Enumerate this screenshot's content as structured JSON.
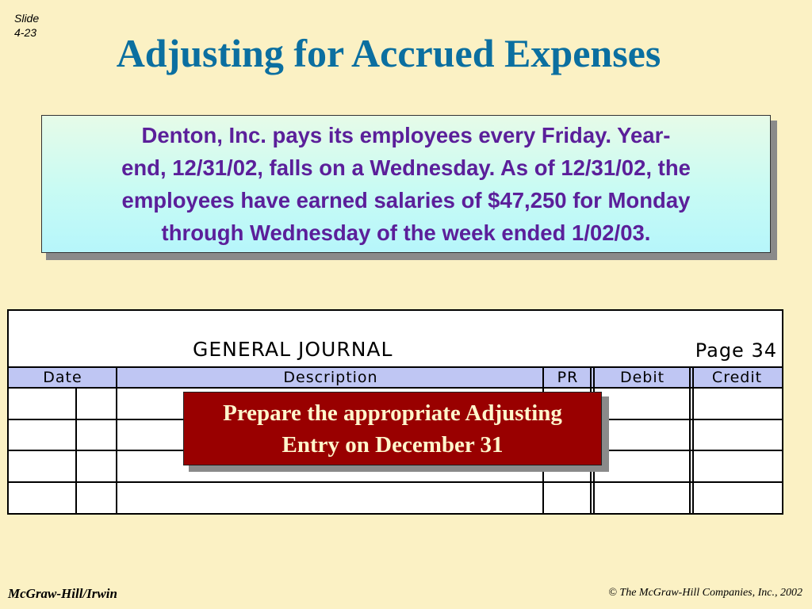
{
  "slide": {
    "label": "Slide",
    "number": "4-23"
  },
  "title": "Adjusting for Accrued Expenses",
  "info": {
    "line1": "Denton, Inc. pays its employees every Friday.  Year-",
    "line2": "end, 12/31/02, falls on a Wednesday. As of 12/31/02, the",
    "line3": "employees have earned salaries of $47,250 for Monday",
    "line4": "through Wednesday of the week ended 1/02/03."
  },
  "journal": {
    "title": "GENERAL JOURNAL",
    "page": "Page 34",
    "columns": {
      "date": "Date",
      "description": "Description",
      "pr": "PR",
      "debit": "Debit",
      "credit": "Credit"
    }
  },
  "prompt": {
    "line1": "Prepare the appropriate Adjusting",
    "line2": "Entry on December 31"
  },
  "footer": {
    "publisher": "McGraw-Hill/Irwin",
    "copyright": "© The McGraw-Hill Companies, Inc., 2002"
  },
  "colors": {
    "background": "#fbf1c4",
    "title": "#0b6fa0",
    "info_text": "#5b1f9a",
    "header_band": "#bfc6f3",
    "prompt_bg": "#990000",
    "prompt_text": "#fff6cc"
  }
}
